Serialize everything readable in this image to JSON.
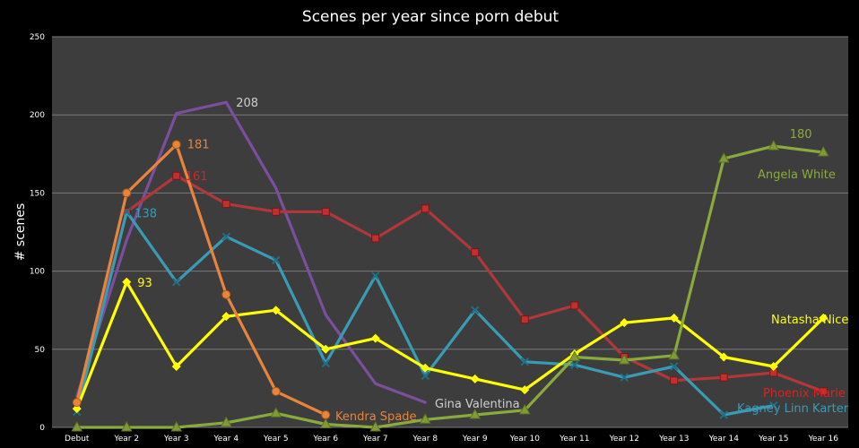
{
  "chart_data": {
    "type": "line",
    "title": "Scenes per year since porn debut",
    "ylabel": "# scenes",
    "xlabel": "",
    "ylim": [
      0,
      250
    ],
    "yticks": [
      0,
      50,
      100,
      150,
      200,
      250
    ],
    "grid": true,
    "legend": "none",
    "categories": [
      "Debut",
      "Year 2",
      "Year 3",
      "Year 4",
      "Year 5",
      "Year 6",
      "Year 7",
      "Year 8",
      "Year 9",
      "Year 10",
      "Year 11",
      "Year 12",
      "Year 13",
      "Year 14",
      "Year 15",
      "Year 16"
    ],
    "series": [
      {
        "name": "Gina Valentina",
        "color": "#7a4f9e",
        "marker": "none",
        "values": [
          20,
          120,
          201,
          208,
          153,
          72,
          28,
          16,
          null,
          null,
          null,
          null,
          null,
          null,
          null,
          null
        ]
      },
      {
        "name": "Phoenix Marie",
        "color": "#b0373a",
        "marker": "square",
        "values": [
          15,
          138,
          161,
          143,
          138,
          138,
          121,
          140,
          112,
          69,
          78,
          45,
          30,
          32,
          35,
          23
        ]
      },
      {
        "name": "Kagney Linn Karter",
        "color": "#3a9bb5",
        "marker": "x",
        "values": [
          10,
          138,
          93,
          122,
          107,
          41,
          97,
          33,
          75,
          42,
          40,
          32,
          39,
          8,
          14,
          null
        ]
      },
      {
        "name": "Natasha Nice",
        "color": "#ffff00",
        "marker": "diamond",
        "values": [
          12,
          93,
          39,
          71,
          75,
          50,
          57,
          38,
          31,
          24,
          47,
          67,
          70,
          45,
          39,
          70
        ]
      },
      {
        "name": "Kendra Spade",
        "color": "#e8843c",
        "marker": "circle",
        "values": [
          16,
          150,
          181,
          85,
          23,
          8,
          null,
          null,
          null,
          null,
          null,
          null,
          null,
          null,
          null,
          null
        ]
      },
      {
        "name": "Angela White",
        "color": "#8aab3c",
        "marker": "triangle",
        "values": [
          0,
          0,
          0,
          3,
          9,
          2,
          0,
          5,
          8,
          11,
          45,
          43,
          46,
          172,
          180,
          176
        ]
      }
    ],
    "annotations": [
      {
        "text": "208",
        "color": "#cfcfcf",
        "cat": 3,
        "value": 208
      },
      {
        "text": "181",
        "color": "#e8843c",
        "cat": 2,
        "value": 181
      },
      {
        "text": "161",
        "color": "#e02020",
        "cat": 2,
        "value": 161
      },
      {
        "text": "138",
        "color": "#3a9bb5",
        "cat": 1,
        "value": 138
      },
      {
        "text": "93",
        "color": "#ffff00",
        "cat": 1,
        "value": 93
      },
      {
        "text": "180",
        "color": "#8aab3c",
        "cat": 14,
        "value": 180
      }
    ],
    "series_labels": [
      {
        "text": "Angela White",
        "color": "#8aab3c"
      },
      {
        "text": "Natasha Nice",
        "color": "#ffff00"
      },
      {
        "text": "Gina Valentina",
        "color": "#cfcfcf"
      },
      {
        "text": "Kendra Spade",
        "color": "#e8843c"
      },
      {
        "text": "Phoenix Marie",
        "color": "#e02020"
      },
      {
        "text": "Kagney Linn Karter",
        "color": "#3a9bb5"
      }
    ],
    "plot_bg": "#3d3d3d",
    "grid_color": "#7a7a7a"
  }
}
